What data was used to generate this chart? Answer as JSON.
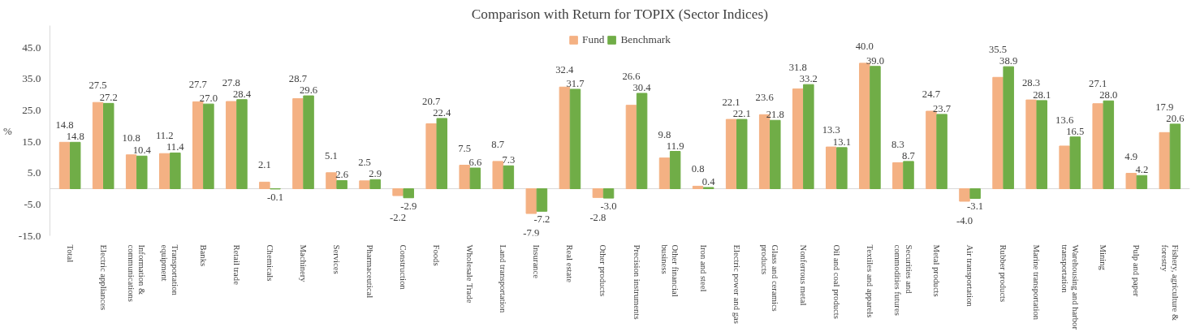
{
  "chart_data": {
    "type": "bar",
    "title": "Comparison with Return for TOPIX (Sector Indices)",
    "ylabel": "%",
    "categories": [
      "Total",
      "Electric appliances",
      "Information & communications",
      "Transportation equipment",
      "Banks",
      "Retail trade",
      "Chemicals",
      "Machinery",
      "Services",
      "Pharmaceutical",
      "Construction",
      "Foods",
      "Wholesale Trade",
      "Land transportation",
      "Insurance",
      "Real estate",
      "Other products",
      "Precision instruments",
      "Other financial business",
      "Iron and steel",
      "Electric power and gas",
      "Glass and ceramics products",
      "Nonferrous metal",
      "Oil and coal products",
      "Textiles and apparels",
      "Securities and commodities futures",
      "Metal products",
      "Air transportation",
      "Rubber products",
      "Marine transportation",
      "Warehousing and harbor transportation",
      "Mining",
      "Pulp and paper",
      "Fishery, agriculture & forestry"
    ],
    "series": [
      {
        "name": "Fund",
        "color": "#f4b183",
        "values": [
          14.8,
          27.5,
          10.8,
          11.2,
          27.7,
          27.8,
          2.1,
          28.7,
          5.1,
          2.5,
          -2.2,
          20.7,
          7.5,
          8.7,
          -7.9,
          32.4,
          -2.8,
          26.6,
          9.8,
          0.8,
          22.1,
          23.6,
          31.8,
          13.3,
          40.0,
          8.3,
          24.7,
          -4.0,
          35.5,
          28.3,
          13.6,
          27.1,
          4.9,
          17.9
        ],
        "value_labels": [
          "14.8",
          "27.5",
          "10.8",
          "11.2",
          "27.7",
          "27.8",
          "2.1",
          "28.7",
          "5.1",
          "2.5",
          "-2.2",
          "20.7",
          "7.5",
          "8.7",
          "-7.9",
          "32.4",
          "-2.8",
          "26.6",
          "9.8",
          "0.8",
          "22.1",
          "23.6",
          "31.8",
          "13.3",
          "40.0",
          "8.3",
          "24.7",
          "-4.0",
          "35.5",
          "28.3",
          "13.6",
          "27.1",
          "4.9",
          "17.9"
        ]
      },
      {
        "name": "Benchmark",
        "color": "#70ad47",
        "values": [
          14.8,
          27.2,
          10.4,
          11.4,
          27.0,
          28.4,
          -0.1,
          29.6,
          2.6,
          2.9,
          -2.9,
          22.4,
          6.6,
          7.3,
          -7.2,
          31.7,
          -3.0,
          30.4,
          11.9,
          0.4,
          22.1,
          21.8,
          33.2,
          13.1,
          39.0,
          8.7,
          23.7,
          -3.1,
          38.9,
          28.1,
          16.5,
          28.0,
          4.2,
          20.6
        ],
        "value_labels": [
          "14.8",
          "27.2",
          "10.4",
          "11.4",
          "27.0",
          "28.4",
          "-0.1",
          "29.6",
          "2.6",
          "2.9",
          "-2.9",
          "22.4",
          "6.6",
          "7.3",
          "-7.2",
          "31.7",
          "-3.0",
          "30.4",
          "11.9",
          "0.4",
          "22.1",
          "21.8",
          "33.2",
          "13.1",
          "39.0",
          "8.7",
          "23.7",
          "-3.1",
          "38.9",
          "28.1",
          "16.5",
          "28.0",
          "4.2",
          "20.6"
        ]
      }
    ],
    "ylim": [
      -15,
      52
    ],
    "yticks": [
      {
        "value": -15,
        "label": "-15.0"
      },
      {
        "value": -5,
        "label": "-5.0"
      },
      {
        "value": 5,
        "label": "5.0"
      },
      {
        "value": 15,
        "label": "15.0"
      },
      {
        "value": 25,
        "label": "25.0"
      },
      {
        "value": 35,
        "label": "35.0"
      },
      {
        "value": 45,
        "label": "45.0"
      }
    ],
    "legend": "top",
    "grid": false
  }
}
